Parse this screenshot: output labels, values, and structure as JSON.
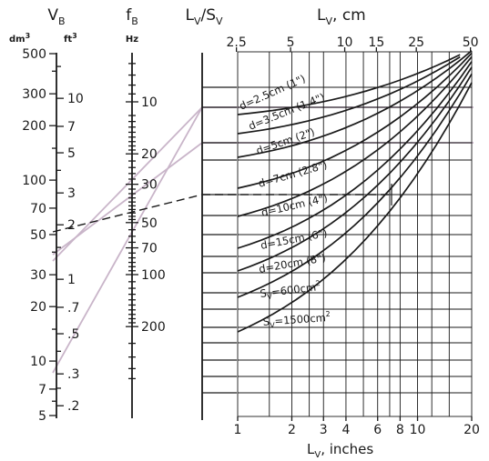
{
  "chart_data": {
    "type": "nomogram",
    "scales": {
      "vb": {
        "symbol": "V",
        "sub": "B",
        "unit_left": "dm",
        "unit_left_sup": "3",
        "unit_right": "ft",
        "unit_right_sup": "3",
        "dm3_ticks": [
          "500",
          "300",
          "200",
          "100",
          "70",
          "50",
          "30",
          "20",
          "10",
          "7",
          "5"
        ],
        "ft3_ticks": [
          "10",
          "7",
          "5",
          "3",
          "2",
          "1",
          ".7",
          ".5",
          ".3",
          ".2"
        ]
      },
      "fb": {
        "symbol": "f",
        "sub": "B",
        "unit": "Hz",
        "ticks": [
          "10",
          "20",
          "30",
          "50",
          "70",
          "100",
          "200"
        ]
      },
      "ratio": {
        "label_l": "L",
        "sub_l": "V",
        "slash": "/",
        "label_s": "S",
        "sub_s": "V"
      }
    },
    "grid": {
      "top_label": "L",
      "top_sub": "V",
      "top_unit": ", cm",
      "top_ticks": [
        "2.5",
        "5",
        "10",
        "15",
        "25",
        "50"
      ],
      "bottom_label": "L",
      "bottom_sub": "V",
      "bottom_unit": ", inches",
      "bottom_ticks": [
        "1",
        "2",
        "3",
        "4",
        "6",
        "8",
        "10",
        "20"
      ],
      "log_scale": true
    },
    "curves": [
      {
        "label": "d=2.5cm (1\")"
      },
      {
        "label": "d=3.5cm (1.4\")"
      },
      {
        "label": "d=5cm (2\")"
      },
      {
        "label": "d=7cm (2.8\")"
      },
      {
        "label": "d=10cm (4\")"
      },
      {
        "label": "d=15cm (6\")"
      },
      {
        "label": "d=20cm (8\")"
      },
      {
        "label": "S",
        "sub": "V",
        "rest": "=600cm",
        "sup": "2"
      },
      {
        "label": "S",
        "sub": "V",
        "rest": "=1500cm",
        "sup": "2"
      }
    ],
    "example": {
      "vb_dm3": 40,
      "fb_hz": 30,
      "lv_inches": 7
    },
    "colors": {
      "ink": "#1a1a1a",
      "guide": "#c9b5c9",
      "paper": "#ffffff"
    }
  }
}
